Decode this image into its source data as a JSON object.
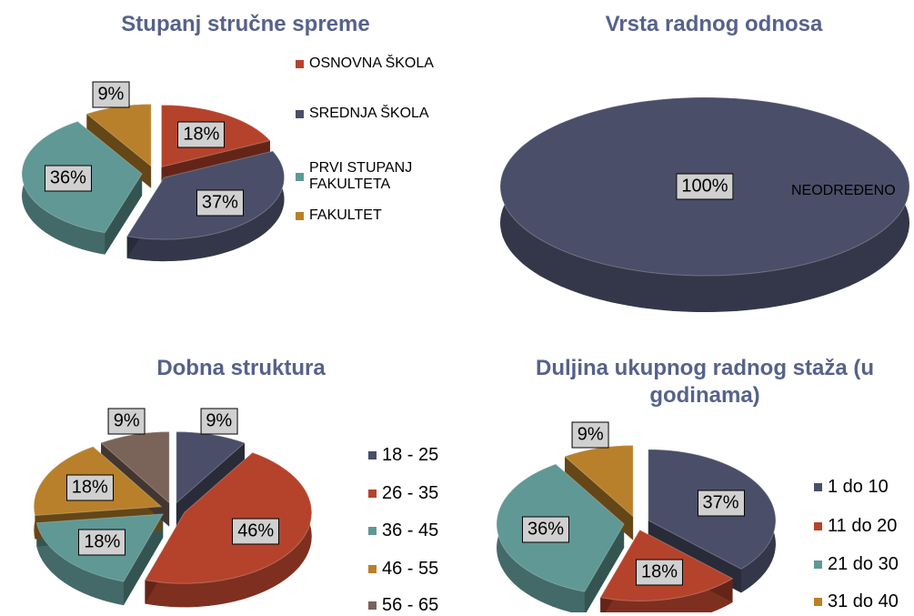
{
  "chart_data": [
    {
      "type": "pie",
      "title": "Stupanj stručne spreme",
      "categories": [
        "OSNOVNA ŠKOLA",
        "SREDNJA ŠKOLA",
        "PRVI STUPANJ FAKULTETA",
        "FAKULTET"
      ],
      "values": [
        18,
        37,
        36,
        9
      ],
      "value_labels": [
        "18%",
        "37%",
        "36%",
        "9%"
      ],
      "colors": [
        "#b5432c",
        "#4a4e68",
        "#5f9894",
        "#b8802a"
      ]
    },
    {
      "type": "pie",
      "title": "Vrsta radnog odnosa",
      "categories": [
        "NEODREĐENO"
      ],
      "values": [
        100
      ],
      "value_labels": [
        "100%"
      ],
      "colors": [
        "#4a4e68"
      ]
    },
    {
      "type": "pie",
      "title": "Dobna struktura",
      "categories": [
        "18 - 25",
        "26 - 35",
        "36 - 45",
        "46 - 55",
        "56 - 65"
      ],
      "values": [
        9,
        46,
        18,
        18,
        9
      ],
      "value_labels": [
        "9%",
        "46%",
        "18%",
        "18%",
        "9%"
      ],
      "colors": [
        "#4a4e68",
        "#b5432c",
        "#5f9894",
        "#b8802a",
        "#7a6358"
      ]
    },
    {
      "type": "pie",
      "title": "Duljina ukupnog radnog staža (u godinama)",
      "categories": [
        "1 do 10",
        "11 do 20",
        "21 do 30",
        "31 do 40"
      ],
      "values": [
        37,
        18,
        36,
        9
      ],
      "value_labels": [
        "37%",
        "18%",
        "36%",
        "9%"
      ],
      "colors": [
        "#4a4e68",
        "#b5432c",
        "#5f9894",
        "#b8802a"
      ]
    }
  ]
}
